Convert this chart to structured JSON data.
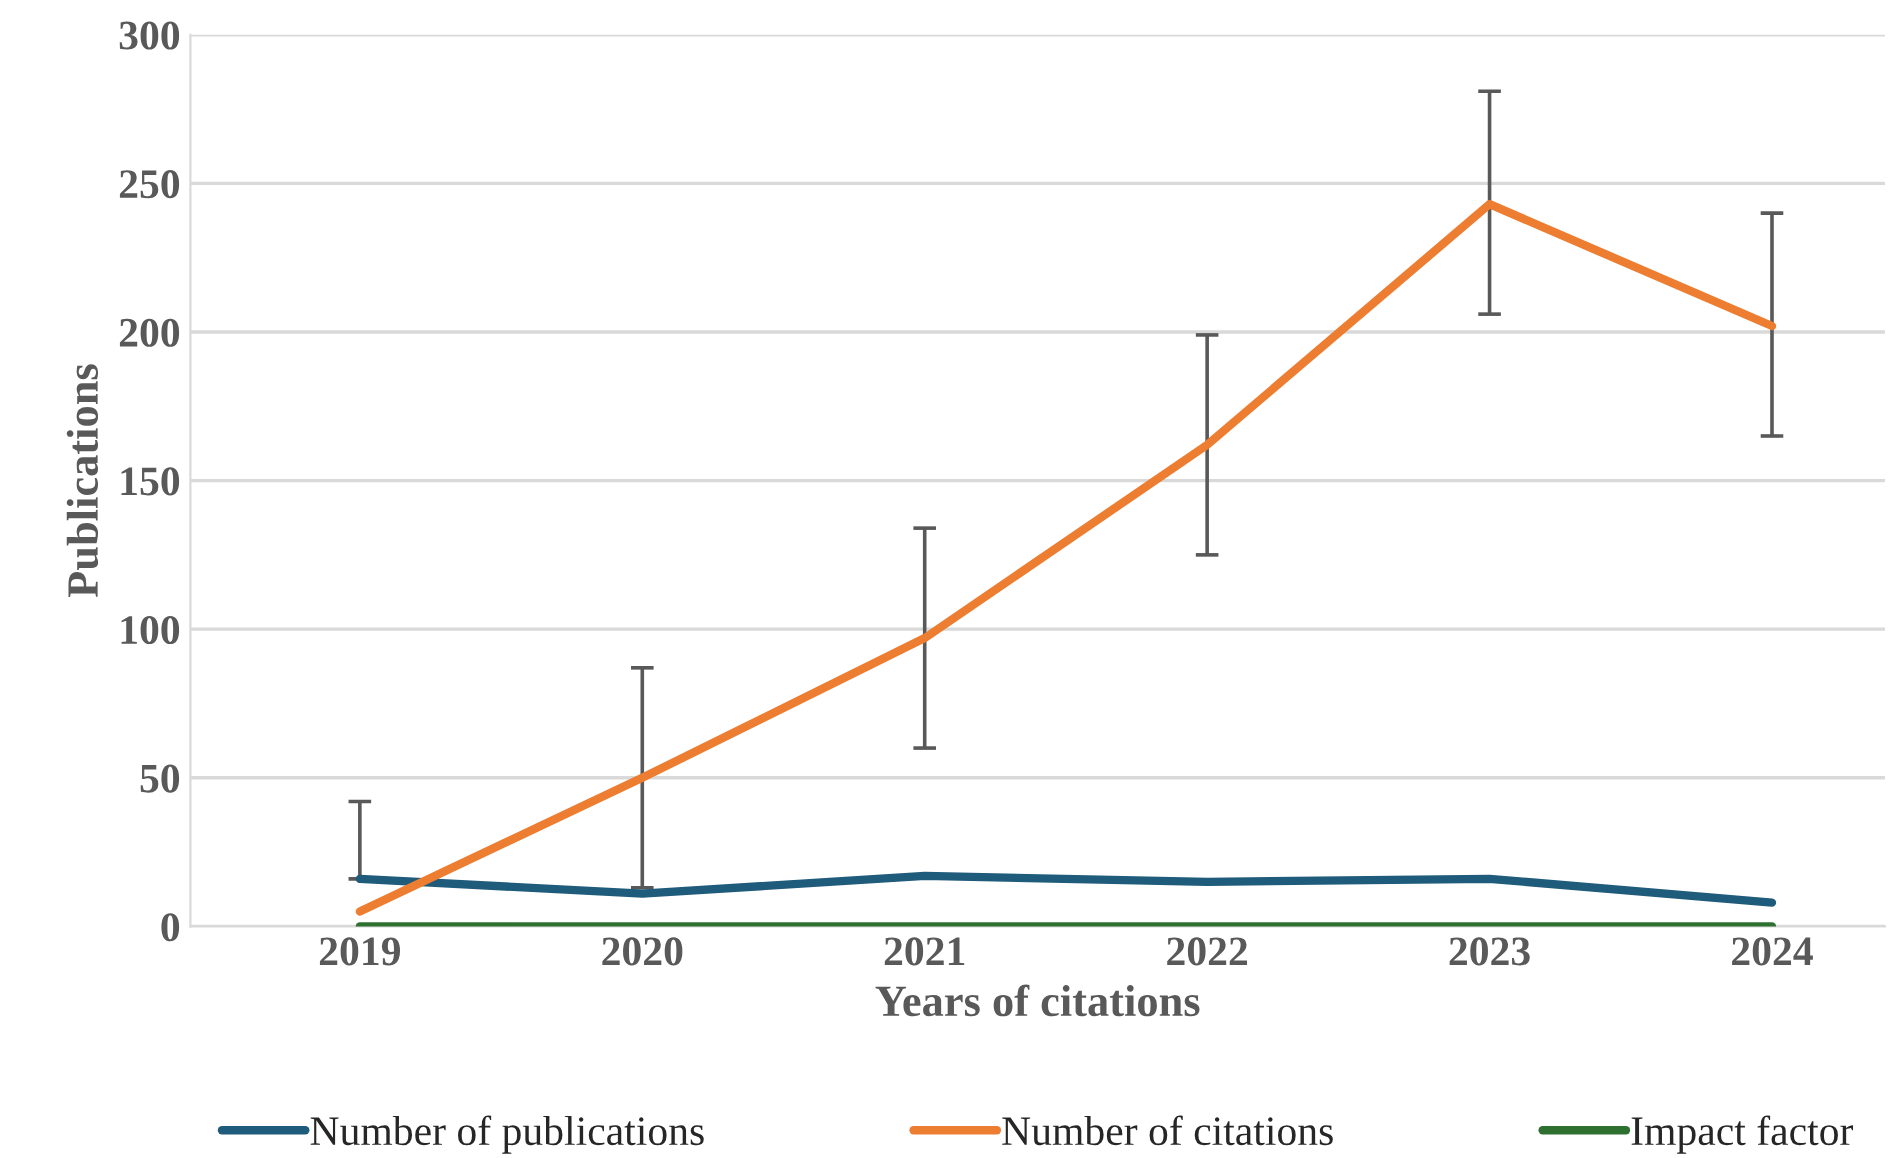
{
  "chart_data": {
    "type": "line",
    "xlabel": "Years of citations",
    "ylabel": "Publications",
    "categories": [
      "2019",
      "2020",
      "2021",
      "2022",
      "2023",
      "2024"
    ],
    "series": [
      {
        "name": "Number of publications",
        "color": "#1f5b7a",
        "values": [
          16,
          11,
          17,
          15,
          16,
          8
        ]
      },
      {
        "name": "Number of citations",
        "color": "#ed7d31",
        "values": [
          5,
          50,
          97,
          162,
          243,
          202
        ],
        "errors": [
          [
            16,
            42
          ],
          [
            13,
            87
          ],
          [
            60,
            134
          ],
          [
            125,
            199
          ],
          [
            206,
            281
          ],
          [
            165,
            240
          ]
        ]
      },
      {
        "name": "Impact factor",
        "color": "#2e7030",
        "values": [
          0,
          0,
          0,
          0,
          0,
          0
        ]
      }
    ],
    "ylim": [
      0,
      300
    ],
    "yticks": [
      0,
      50,
      100,
      150,
      200,
      250,
      300
    ],
    "grid": "y",
    "legend": "bottom",
    "marker": "none",
    "line_style": "solid"
  }
}
